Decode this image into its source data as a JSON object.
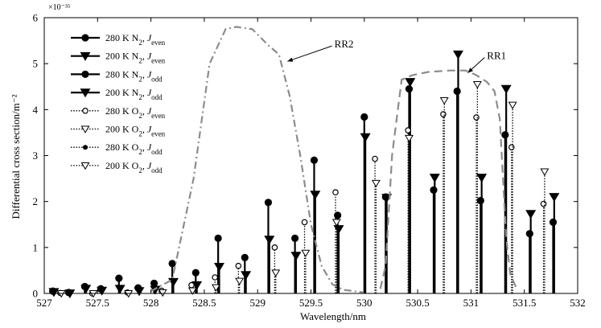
{
  "chart_data": {
    "type": "stem",
    "xlabel": "Wavelength/nm",
    "ylabel": "Differential cross section/m⁻²",
    "y_multiplier": "×10⁻³⁵",
    "xlim": [
      527,
      532
    ],
    "ylim": [
      0,
      6
    ],
    "x_ticks": [
      527,
      527.5,
      528,
      528.5,
      529,
      529.5,
      530,
      530.5,
      531,
      531.5,
      532
    ],
    "x_tick_labels": [
      "527",
      "527.5",
      "528",
      "528.5",
      "529",
      "529.5",
      "530",
      "530.5",
      "531",
      "531.5",
      "532"
    ],
    "y_ticks": [
      0,
      1,
      2,
      3,
      4,
      5,
      6
    ],
    "y_tick_labels": [
      "0",
      "1",
      "2",
      "3",
      "4",
      "5",
      "6"
    ],
    "legend": [
      {
        "temp": "280 K",
        "mol": "N",
        "sub": "2",
        "j": "even",
        "style": "n280"
      },
      {
        "temp": "200 K",
        "mol": "N",
        "sub": "2",
        "j": "even",
        "style": "n200"
      },
      {
        "temp": "280 K",
        "mol": "N",
        "sub": "2",
        "j": "odd",
        "style": "n280"
      },
      {
        "temp": "200 K",
        "mol": "N",
        "sub": "2",
        "j": "odd",
        "style": "n200"
      },
      {
        "temp": "280 K",
        "mol": "O",
        "sub": "2",
        "j": "even",
        "style": "o280"
      },
      {
        "temp": "200 K",
        "mol": "O",
        "sub": "2",
        "j": "even",
        "style": "o200"
      },
      {
        "temp": "280 K",
        "mol": "O",
        "sub": "2",
        "j": "odd",
        "style": "o280odd"
      },
      {
        "temp": "200 K",
        "mol": "O",
        "sub": "2",
        "j": "odd",
        "style": "o200"
      }
    ],
    "annotations": [
      {
        "text": "RR2",
        "x": 529.72,
        "y": 5.35,
        "arrow_to": [
          529.28,
          5.05
        ]
      },
      {
        "text": "RR1",
        "x": 531.15,
        "y": 5.1,
        "arrow_to": [
          530.97,
          4.8
        ]
      }
    ],
    "filters": [
      {
        "name": "RR2",
        "points": [
          [
            528.0,
            0.05
          ],
          [
            528.2,
            0.3
          ],
          [
            528.4,
            2.5
          ],
          [
            528.55,
            5.0
          ],
          [
            528.7,
            5.75
          ],
          [
            528.8,
            5.8
          ],
          [
            528.95,
            5.75
          ],
          [
            529.1,
            5.4
          ],
          [
            529.2,
            5.2
          ],
          [
            529.3,
            4.3
          ],
          [
            529.4,
            3.0
          ],
          [
            529.5,
            1.5
          ],
          [
            529.6,
            0.6
          ],
          [
            529.7,
            0.2
          ],
          [
            529.8,
            0.08
          ],
          [
            530.0,
            0.02
          ]
        ]
      },
      {
        "name": "RR1",
        "points": [
          [
            530.15,
            0.1
          ],
          [
            530.2,
            0.6
          ],
          [
            530.26,
            3.0
          ],
          [
            530.35,
            4.65
          ],
          [
            530.45,
            4.75
          ],
          [
            530.6,
            4.82
          ],
          [
            530.8,
            4.85
          ],
          [
            530.95,
            4.85
          ],
          [
            531.05,
            4.75
          ],
          [
            531.15,
            4.6
          ],
          [
            531.22,
            4.4
          ],
          [
            531.27,
            3.8
          ],
          [
            531.3,
            2.5
          ],
          [
            531.33,
            1.2
          ],
          [
            531.37,
            0.4
          ],
          [
            531.43,
            0.1
          ]
        ]
      }
    ],
    "series": [
      {
        "name": "280 K N2",
        "style": "n280",
        "x": [
          527.08,
          527.23,
          527.38,
          527.53,
          527.7,
          527.88,
          528.03,
          528.2,
          528.42,
          528.63,
          528.88,
          529.1,
          529.35,
          529.53,
          529.75,
          530.0,
          530.2,
          530.42,
          530.65,
          530.87,
          531.09,
          531.32,
          531.55,
          531.77
        ],
        "values": [
          0.05,
          0.02,
          0.15,
          0.1,
          0.33,
          0.12,
          0.22,
          0.65,
          0.45,
          1.2,
          0.78,
          1.98,
          1.2,
          2.9,
          1.7,
          3.84,
          2.1,
          4.45,
          2.25,
          4.4,
          2.02,
          3.45,
          1.3,
          1.55
        ]
      },
      {
        "name": "200 K N2",
        "style": "n200",
        "x": [
          527.09,
          527.24,
          527.39,
          527.54,
          527.71,
          527.89,
          528.04,
          528.21,
          528.43,
          528.64,
          528.89,
          529.11,
          529.36,
          529.54,
          529.76,
          530.01,
          530.21,
          530.43,
          530.66,
          530.88,
          531.1,
          531.33,
          531.56,
          531.78
        ],
        "values": [
          0.03,
          0.0,
          0.1,
          0.06,
          0.1,
          0.05,
          0.08,
          0.25,
          0.18,
          0.58,
          0.4,
          1.17,
          0.82,
          2.15,
          1.4,
          3.4,
          2.08,
          4.6,
          2.52,
          5.2,
          2.52,
          4.45,
          1.73,
          2.1
        ]
      },
      {
        "name": "280 K O2",
        "style": "o280",
        "x": [
          527.15,
          527.45,
          527.78,
          528.1,
          528.38,
          528.6,
          528.82,
          529.16,
          529.44,
          529.73,
          530.1,
          530.41,
          530.74,
          531.05,
          531.38,
          531.68
        ],
        "values": [
          0.01,
          0.0,
          0.02,
          0.06,
          0.18,
          0.35,
          0.6,
          1.0,
          1.55,
          2.2,
          2.93,
          3.55,
          3.9,
          3.83,
          3.18,
          1.95
        ]
      },
      {
        "name": "200 K O2",
        "style": "o200",
        "x": [
          527.16,
          527.46,
          527.79,
          528.11,
          528.39,
          528.61,
          528.83,
          529.17,
          529.45,
          529.74,
          530.11,
          530.42,
          530.75,
          531.06,
          531.39,
          531.69
        ],
        "values": [
          0.0,
          0.0,
          0.0,
          0.02,
          0.06,
          0.13,
          0.27,
          0.45,
          0.88,
          1.55,
          2.4,
          3.38,
          4.2,
          4.55,
          4.1,
          2.65
        ]
      }
    ]
  }
}
